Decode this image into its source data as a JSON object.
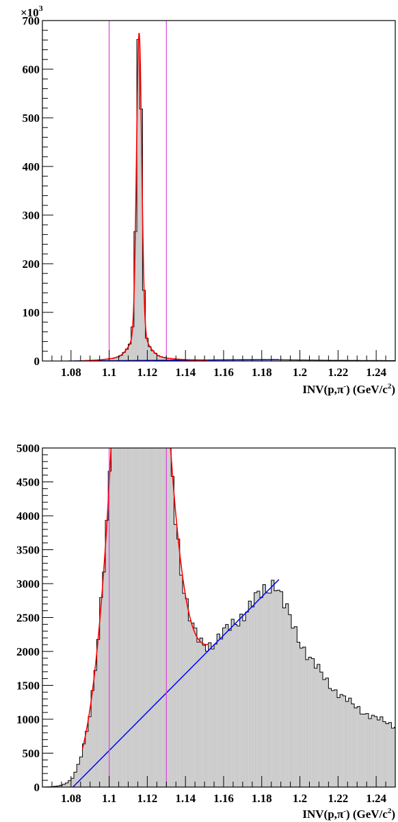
{
  "chart_data": [
    {
      "type": "histogram",
      "panel": "top",
      "x_title_pre": "INV(p,",
      "x_title_pi": "π",
      "x_title_sup1": "-",
      "x_title_mid": ") (GeV/c",
      "x_title_sup2": "2",
      "x_title_post": ")",
      "y_multiplier_base": "×10",
      "y_multiplier_exp": "3",
      "xlim": [
        1.065,
        1.25
      ],
      "ylim": [
        0,
        700000
      ],
      "x_ticks": [
        "1.08",
        "1.1",
        "1.12",
        "1.14",
        "1.16",
        "1.18",
        "1.2",
        "1.22",
        "1.24"
      ],
      "x_tick_values": [
        1.08,
        1.1,
        1.12,
        1.14,
        1.16,
        1.18,
        1.2,
        1.22,
        1.24
      ],
      "y_ticks": [
        "0",
        "100",
        "200",
        "300",
        "400",
        "500",
        "600",
        "700"
      ],
      "y_tick_values": [
        0,
        100000,
        200000,
        300000,
        400000,
        500000,
        600000,
        700000
      ],
      "vertical_lines": [
        1.1,
        1.13
      ],
      "colors": {
        "fill": "#cccccc",
        "outline": "#000000",
        "fit": "#ff0000",
        "background_fit": "#0000ff",
        "window": "#e040e0"
      }
    },
    {
      "type": "histogram",
      "panel": "bottom",
      "x_title_pre": "INV(p,",
      "x_title_pi": "π",
      "x_title_sup1": "-",
      "x_title_mid": ") (GeV/c",
      "x_title_sup2": "2",
      "x_title_post": ")",
      "xlim": [
        1.065,
        1.25
      ],
      "ylim": [
        0,
        5000
      ],
      "x_ticks": [
        "1.08",
        "1.1",
        "1.12",
        "1.14",
        "1.16",
        "1.18",
        "1.2",
        "1.22",
        "1.24"
      ],
      "x_tick_values": [
        1.08,
        1.1,
        1.12,
        1.14,
        1.16,
        1.18,
        1.2,
        1.22,
        1.24
      ],
      "y_ticks": [
        "0",
        "500",
        "1000",
        "1500",
        "2000",
        "2500",
        "3000",
        "3500",
        "4000",
        "4500",
        "5000"
      ],
      "y_tick_values": [
        0,
        500,
        1000,
        1500,
        2000,
        2500,
        3000,
        3500,
        4000,
        4500,
        5000
      ],
      "vertical_lines": [
        1.1,
        1.13
      ],
      "background_line": {
        "x": [
          1.081,
          1.189
        ],
        "y": [
          0,
          3060
        ]
      },
      "colors": {
        "fill": "#cccccc",
        "outline": "#000000",
        "fit": "#ff0000",
        "background_fit": "#0000ff",
        "window": "#e040e0"
      }
    }
  ]
}
